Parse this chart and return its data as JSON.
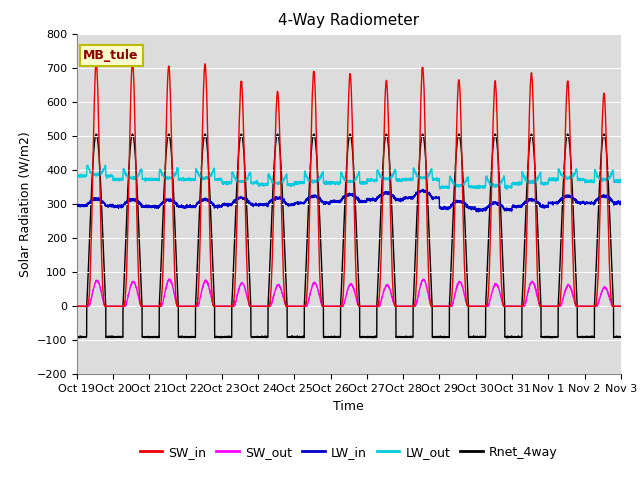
{
  "title": "4-Way Radiometer",
  "ylabel": "Solar Radiation (W/m2)",
  "xlabel": "Time",
  "ylim": [
    -200,
    800
  ],
  "yticks": [
    -200,
    -100,
    0,
    100,
    200,
    300,
    400,
    500,
    600,
    700,
    800
  ],
  "bg_color": "#dcdcdc",
  "fig_color": "#ffffff",
  "station_label": "MB_tule",
  "legend": [
    "SW_in",
    "SW_out",
    "LW_in",
    "LW_out",
    "Rnet_4way"
  ],
  "colors": {
    "SW_in": "#ee0000",
    "SW_out": "#ff00ff",
    "LW_in": "#0000cc",
    "LW_out": "#00ccdd",
    "Rnet_4way": "#000000"
  },
  "n_days": 15,
  "tick_labels": [
    "Oct 19",
    "Oct 20",
    "Oct 21",
    "Oct 22",
    "Oct 23",
    "Oct 24",
    "Oct 25",
    "Oct 26",
    "Oct 27",
    "Oct 28",
    "Oct 29",
    "Oct 30",
    "Oct 31",
    "Nov 1",
    "Nov 2",
    "Nov 3"
  ],
  "SW_in_peaks": [
    715,
    715,
    705,
    710,
    660,
    630,
    690,
    680,
    660,
    700,
    665,
    660,
    685,
    660,
    625
  ],
  "SW_out_peaks": [
    75,
    72,
    78,
    75,
    68,
    62,
    68,
    65,
    62,
    78,
    72,
    65,
    72,
    62,
    55
  ],
  "LW_in_base": [
    295,
    293,
    292,
    293,
    298,
    298,
    303,
    308,
    313,
    318,
    288,
    283,
    293,
    303,
    303
  ],
  "LW_out_base": [
    382,
    372,
    372,
    372,
    362,
    357,
    362,
    362,
    370,
    372,
    350,
    350,
    360,
    372,
    367
  ],
  "Rnet_night": -90,
  "Rnet_peak": 505,
  "pts_per_day": 288,
  "dawn_hour": 6.5,
  "dusk_hour": 19.2
}
